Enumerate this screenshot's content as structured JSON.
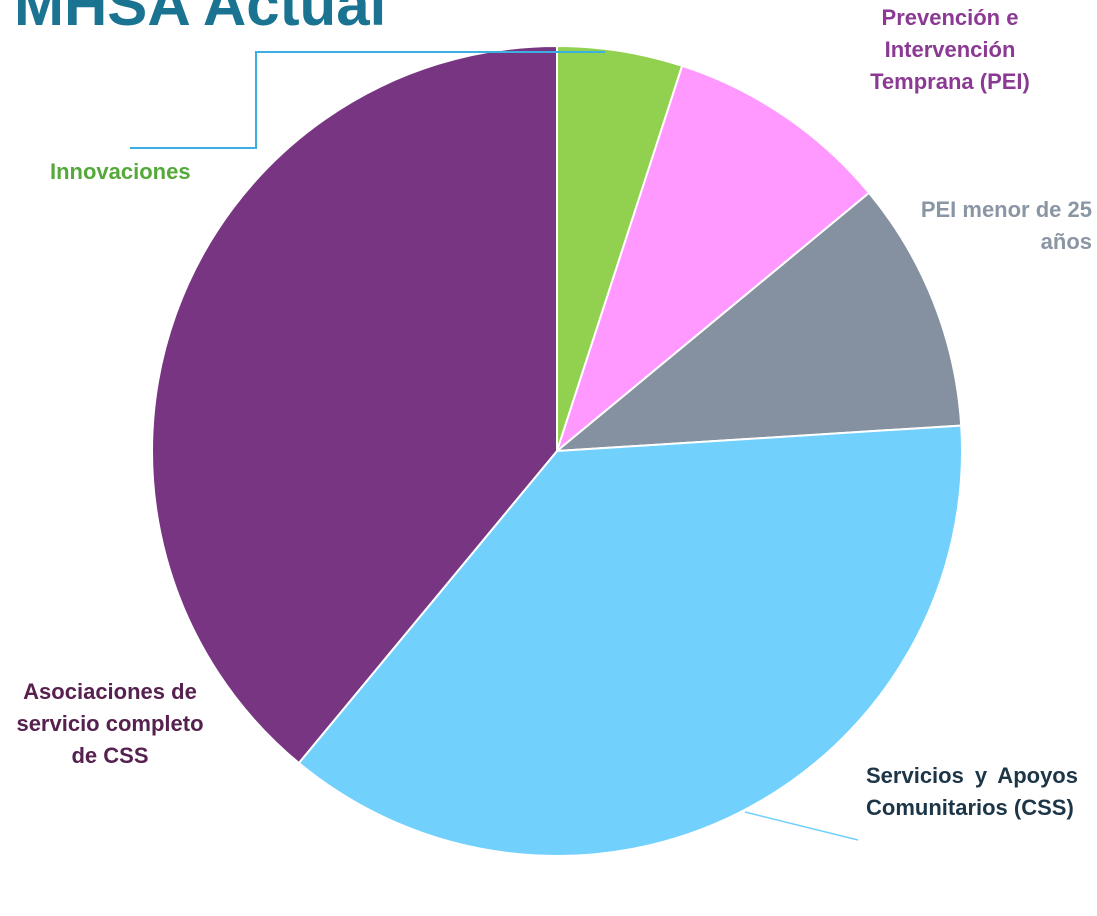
{
  "chart_data": {
    "type": "pie",
    "title": "MHSA Actual",
    "categories": [
      "Innovaciones",
      "Prevención e Intervención Temprana (PEI)",
      "PEI menor de 25 años",
      "Servicios y Apoyos Comunitarios (CSS)",
      "Asociaciones de servicio completo de CSS"
    ],
    "values": [
      5,
      9,
      10,
      37,
      39
    ],
    "colors": [
      "#92d050",
      "#ff99ff",
      "#8591a0",
      "#71d0fc",
      "#783582"
    ],
    "label_colors": [
      "#55a93a",
      "#8b3a93",
      "#8a96a3",
      "#1c3547",
      "#56204f"
    ]
  }
}
